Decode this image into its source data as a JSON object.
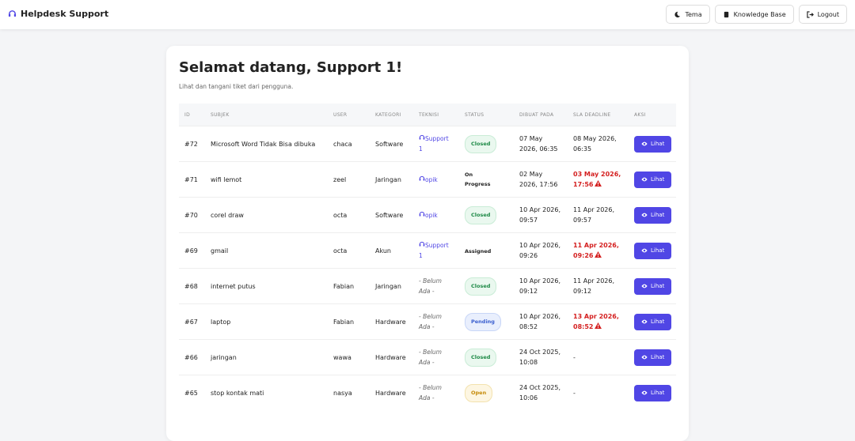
{
  "header": {
    "brand": "Helpdesk Support",
    "buttons": [
      "Tema",
      "Knowledge Base",
      "Logout"
    ]
  },
  "card": {
    "title": "Selamat datang, Support 1!",
    "subtitle": "Lihat dan tangani tiket dari pengguna."
  },
  "table": {
    "columns": [
      "ID",
      "SUBJEK",
      "USER",
      "KATEGORI",
      "TEKNISI",
      "STATUS",
      "DIBUAT PADA",
      "SLA DEADLINE",
      "AKSI"
    ],
    "rows": [
      {
        "id": "#72",
        "subject": "Microsoft Word Tidak Bisa dibuka",
        "user": "chaca",
        "category": "Software",
        "technician": {
          "name": "Support 1",
          "assigned": true
        },
        "status": {
          "label": "Closed",
          "tone": "green"
        },
        "created": "07 May 2026, 06:35",
        "deadline": {
          "text": "08 May 2026, 06:35",
          "overdue": false
        },
        "action": "Lihat"
      },
      {
        "id": "#71",
        "subject": "wifi lemot",
        "user": "zeel",
        "category": "Jaringan",
        "technician": {
          "name": "opik",
          "assigned": true
        },
        "status": {
          "label": "On Progress",
          "tone": "plain"
        },
        "created": "02 May 2026, 17:56",
        "deadline": {
          "text": "03 May 2026, 17:56",
          "overdue": true
        },
        "action": "Lihat"
      },
      {
        "id": "#70",
        "subject": "corel draw",
        "user": "octa",
        "category": "Software",
        "technician": {
          "name": "opik",
          "assigned": true
        },
        "status": {
          "label": "Closed",
          "tone": "green"
        },
        "created": "10 Apr 2026, 09:57",
        "deadline": {
          "text": "11 Apr 2026, 09:57",
          "overdue": false
        },
        "action": "Lihat"
      },
      {
        "id": "#69",
        "subject": "gmail",
        "user": "octa",
        "category": "Akun",
        "technician": {
          "name": "Support 1",
          "assigned": true
        },
        "status": {
          "label": "Assigned",
          "tone": "plain"
        },
        "created": "10 Apr 2026, 09:26",
        "deadline": {
          "text": "11 Apr 2026, 09:26",
          "overdue": true
        },
        "action": "Lihat"
      },
      {
        "id": "#68",
        "subject": "internet putus",
        "user": "Fabian",
        "category": "Jaringan",
        "technician": {
          "name": "- Belum Ada -",
          "assigned": false
        },
        "status": {
          "label": "Closed",
          "tone": "green"
        },
        "created": "10 Apr 2026, 09:12",
        "deadline": {
          "text": "11 Apr 2026, 09:12",
          "overdue": false
        },
        "action": "Lihat"
      },
      {
        "id": "#67",
        "subject": "laptop",
        "user": "Fabian",
        "category": "Hardware",
        "technician": {
          "name": "- Belum Ada -",
          "assigned": false
        },
        "status": {
          "label": "Pending",
          "tone": "blue"
        },
        "created": "10 Apr 2026, 08:52",
        "deadline": {
          "text": "13 Apr 2026, 08:52",
          "overdue": true
        },
        "action": "Lihat"
      },
      {
        "id": "#66",
        "subject": "jaringan",
        "user": "wawa",
        "category": "Hardware",
        "technician": {
          "name": "- Belum Ada -",
          "assigned": false
        },
        "status": {
          "label": "Closed",
          "tone": "green"
        },
        "created": "24 Oct 2025, 10:08",
        "deadline": {
          "text": "-",
          "overdue": false
        },
        "action": "Lihat"
      },
      {
        "id": "#65",
        "subject": "stop kontak mati",
        "user": "nasya",
        "category": "Hardware",
        "technician": {
          "name": "- Belum Ada -",
          "assigned": false
        },
        "status": {
          "label": "Open",
          "tone": "yellow"
        },
        "created": "24 Oct 2025, 10:06",
        "deadline": {
          "text": "-",
          "overdue": false
        },
        "action": "Lihat"
      }
    ]
  }
}
